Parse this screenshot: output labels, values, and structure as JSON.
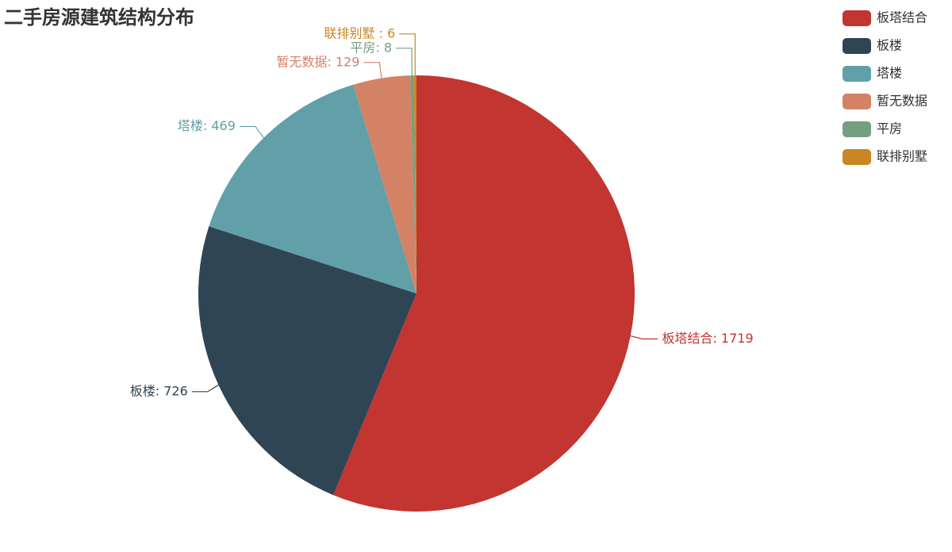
{
  "chart_data": {
    "type": "pie",
    "title": "二手房源建筑结构分布",
    "categories": [
      "板塔结合",
      "板楼",
      "塔楼",
      "暂无数据",
      "平房",
      "联排别墅"
    ],
    "values": [
      1719,
      726,
      469,
      129,
      8,
      6
    ],
    "value_labels": [
      "板塔结合: 1719",
      "板楼: 726",
      "塔楼: 469",
      "暂无数据: 129",
      "平房: 8",
      "联排别墅 : 6"
    ],
    "colors": [
      "#c23531",
      "#2f4554",
      "#61a0a8",
      "#d48265",
      "#749f83",
      "#ca8622"
    ],
    "legend": "top-right"
  }
}
